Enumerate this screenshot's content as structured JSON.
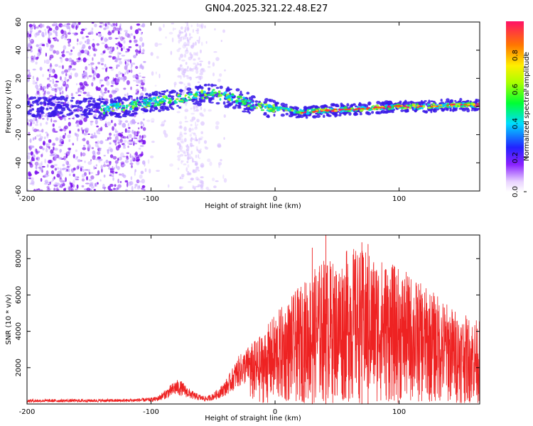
{
  "title": "GN04.2025.321.22.48.E27",
  "colors": {
    "snr_line": "#ee2222",
    "axis": "#000000",
    "background": "#ffffff"
  },
  "chart_data": [
    {
      "type": "heatmap",
      "name": "spectrogram",
      "xlabel": "Height of straight line (km)",
      "ylabel": "Frequency (Hz)",
      "xlim": [
        -200,
        165
      ],
      "ylim": [
        -60,
        60
      ],
      "xticks": [
        "-200",
        "-100",
        "0",
        "100"
      ],
      "yticks": [
        "60",
        "40",
        "20",
        "0",
        "-20",
        "-40",
        "-60"
      ],
      "ridge": {
        "x": [
          -200,
          -180,
          -160,
          -140,
          -120,
          -100,
          -80,
          -60,
          -50,
          -40,
          -30,
          -20,
          -10,
          0,
          10,
          20,
          40,
          60,
          80,
          100,
          120,
          140,
          165
        ],
        "freq": [
          0,
          0,
          0,
          -2,
          0,
          3,
          5,
          8,
          9,
          7,
          5,
          2,
          0,
          -1,
          -3,
          -4,
          -3,
          -2,
          -1,
          0,
          0,
          1,
          1
        ]
      },
      "colorbar": {
        "label": "Normalized spectral amplitude",
        "range": [
          0,
          1
        ],
        "ticks": [
          "0.0",
          "0.2",
          "0.4",
          "0.6",
          "0.8"
        ]
      }
    },
    {
      "type": "line",
      "name": "snr",
      "xlabel": "Height of straight line (km)",
      "ylabel": "SNR (10 * v/v)",
      "xlim": [
        -200,
        165
      ],
      "ylim": [
        0,
        9300
      ],
      "xticks": [
        "-200",
        "-100",
        "0",
        "100"
      ],
      "yticks": [
        "2000",
        "4000",
        "6000",
        "8000"
      ],
      "envelope": {
        "x": [
          -200,
          -120,
          -100,
          -95,
          -90,
          -85,
          -80,
          -75,
          -70,
          -65,
          -60,
          -55,
          -50,
          -45,
          -40,
          -35,
          -30,
          -20,
          -10,
          0,
          10,
          20,
          30,
          40,
          50,
          60,
          70,
          80,
          90,
          100,
          110,
          120,
          130,
          140,
          150,
          165
        ],
        "y": [
          260,
          280,
          350,
          420,
          700,
          1000,
          1350,
          1250,
          900,
          650,
          500,
          420,
          600,
          900,
          1300,
          1900,
          2600,
          3300,
          3900,
          5000,
          5700,
          6500,
          7300,
          8100,
          7800,
          8700,
          8500,
          8200,
          7900,
          7500,
          7100,
          6500,
          6100,
          5500,
          5000,
          4600
        ]
      },
      "peaks": [
        {
          "x": 41,
          "y": 9300
        },
        {
          "x": 70,
          "y": 8900
        },
        {
          "x": 30,
          "y": 8600
        },
        {
          "x": 75,
          "y": 8800
        }
      ]
    }
  ]
}
